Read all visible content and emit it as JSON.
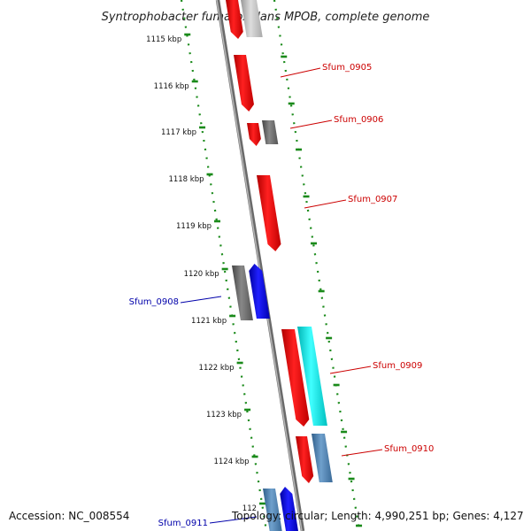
{
  "title": "Syntrophobacter fumaroxidans MPOB, complete genome",
  "ticks": [
    {
      "label": "1115 kbp"
    },
    {
      "label": "1116 kbp"
    },
    {
      "label": "1117 kbp"
    },
    {
      "label": "1118 kbp"
    },
    {
      "label": "1119 kbp"
    },
    {
      "label": "1120 kbp"
    },
    {
      "label": "1121 kbp"
    },
    {
      "label": "1122 kbp"
    },
    {
      "label": "1123 kbp"
    },
    {
      "label": "1124 kbp"
    },
    {
      "label": "112"
    }
  ],
  "gene_labels": [
    {
      "text": "Sfum_0905",
      "color": "#cc0000"
    },
    {
      "text": "Sfum_0906",
      "color": "#cc0000"
    },
    {
      "text": "Sfum_0907",
      "color": "#cc0000"
    },
    {
      "text": "Sfum_0908",
      "color": "#0000aa"
    },
    {
      "text": "Sfum_0909",
      "color": "#cc0000"
    },
    {
      "text": "Sfum_0910",
      "color": "#cc0000"
    },
    {
      "text": "Sfum_0911",
      "color": "#0000aa"
    }
  ],
  "footer": {
    "accession": "Accession: NC_008554",
    "summary": "Topology: circular; Length: 4,990,251 bp; Genes: 4,127"
  },
  "colors": {
    "forward_gene": "#ff0000",
    "reverse_gene": "#0000ff",
    "gray_gene": "#666666",
    "cyan_gene": "#00e5e5",
    "steel_gene": "#4a7fb0",
    "track_dots": "#1a8a1a",
    "backbone": "#888888"
  }
}
